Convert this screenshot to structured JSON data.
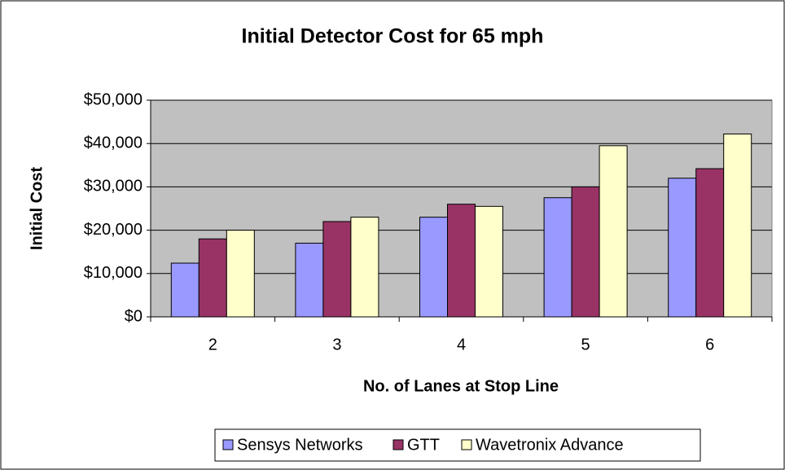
{
  "chart_data": {
    "type": "bar",
    "title": "Initial Detector Cost for 65 mph",
    "x_label": "No. of Lanes at Stop Line",
    "y_label": "Initial Cost",
    "categories": [
      "2",
      "3",
      "4",
      "5",
      "6"
    ],
    "series": [
      {
        "name": "Sensys Networks",
        "color": "#9999ff",
        "values": [
          12400,
          17000,
          23000,
          27500,
          32000
        ]
      },
      {
        "name": "GTT",
        "color": "#993366",
        "values": [
          18000,
          22000,
          26000,
          30000,
          34200
        ]
      },
      {
        "name": "Wavetronix Advance",
        "color": "#ffffcc",
        "values": [
          20000,
          23000,
          25500,
          39500,
          42200
        ]
      }
    ],
    "ylim": [
      0,
      50000
    ],
    "yticks": [
      {
        "value": 0,
        "label": "$0"
      },
      {
        "value": 10000,
        "label": "$10,000"
      },
      {
        "value": 20000,
        "label": "$20,000"
      },
      {
        "value": 30000,
        "label": "$30,000"
      },
      {
        "value": 40000,
        "label": "$40,000"
      },
      {
        "value": 50000,
        "label": "$50,000"
      }
    ],
    "grid": true,
    "legend": "bottom"
  }
}
